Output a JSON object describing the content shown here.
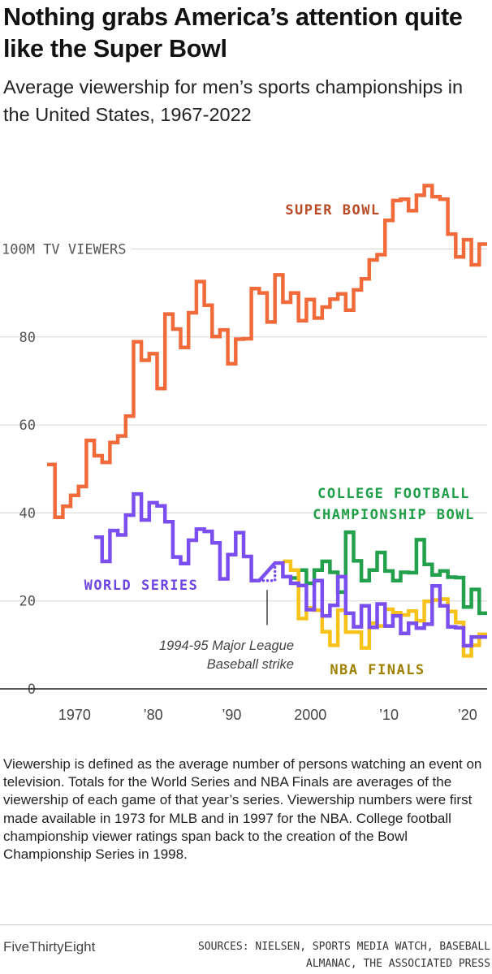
{
  "header": {
    "title": "Nothing grabs America’s attention quite like the Super Bowl",
    "subtitle": "Average viewership for men’s sports championships in the United States, 1967-2022"
  },
  "chart_data": {
    "type": "line",
    "step": true,
    "xlabel": "",
    "ylabel": "100M TV VIEWERS",
    "xlim": [
      1966.5,
      2022.5
    ],
    "ylim": [
      0,
      120
    ],
    "y_ticks": [
      0,
      20,
      40,
      60,
      80,
      100
    ],
    "y_tick_labels": [
      "0",
      "20",
      "40",
      "60",
      "80",
      "100M TV VIEWERS"
    ],
    "x_ticks": [
      1970,
      1980,
      1990,
      2000,
      2010,
      2020
    ],
    "x_tick_labels": [
      "1970",
      "’80",
      "’90",
      "2000",
      "’10",
      "’20"
    ],
    "series": [
      {
        "name": "SUPER BOWL",
        "color": "#f16a3a",
        "label_color": "#b84a25",
        "years": [
          1967,
          1968,
          1969,
          1970,
          1971,
          1972,
          1973,
          1974,
          1975,
          1976,
          1977,
          1978,
          1979,
          1980,
          1981,
          1982,
          1983,
          1984,
          1985,
          1986,
          1987,
          1988,
          1989,
          1990,
          1991,
          1992,
          1993,
          1994,
          1995,
          1996,
          1997,
          1998,
          1999,
          2000,
          2001,
          2002,
          2003,
          2004,
          2005,
          2006,
          2007,
          2008,
          2009,
          2010,
          2011,
          2012,
          2013,
          2014,
          2015,
          2016,
          2017,
          2018,
          2019,
          2020,
          2021,
          2022
        ],
        "values": [
          51,
          39,
          41.5,
          44,
          46,
          56.5,
          53,
          51.5,
          56,
          57.5,
          62,
          78.9,
          74.7,
          76.2,
          68.3,
          85.2,
          81.8,
          77.6,
          85.5,
          92.6,
          87.2,
          80.1,
          81.6,
          73.9,
          79.5,
          79.6,
          90.99,
          90,
          83.4,
          94.1,
          87.9,
          90,
          83.7,
          88.5,
          84.3,
          86.8,
          88.6,
          89.8,
          86.1,
          90.7,
          93.2,
          97.5,
          98.7,
          106.5,
          111,
          111.3,
          108.7,
          112.2,
          114.4,
          111.9,
          111.3,
          103.4,
          98.2,
          102.1,
          96.4,
          101.1
        ]
      },
      {
        "name": "WORLD SERIES",
        "color": "#7b4fef",
        "label_color": "#6e45e0",
        "years": [
          1973,
          1974,
          1975,
          1976,
          1977,
          1978,
          1979,
          1980,
          1981,
          1982,
          1983,
          1984,
          1985,
          1986,
          1987,
          1988,
          1989,
          1990,
          1991,
          1992,
          1993,
          1996,
          1997,
          1998,
          1999,
          2000,
          2001,
          2002,
          2003,
          2004,
          2005,
          2006,
          2007,
          2008,
          2009,
          2010,
          2011,
          2012,
          2013,
          2014,
          2015,
          2016,
          2017,
          2018,
          2019,
          2020,
          2021,
          2022
        ],
        "values": [
          34.5,
          29,
          36,
          35,
          39.5,
          44.3,
          38.4,
          42.3,
          41.6,
          38,
          30,
          28.5,
          33.8,
          36.3,
          35.8,
          33.2,
          25,
          30.5,
          35.5,
          30.1,
          24.6,
          28.6,
          25.5,
          24,
          23.5,
          18,
          24.6,
          16.6,
          19,
          25.5,
          17.2,
          14.1,
          18.9,
          14,
          19.3,
          14.3,
          16.6,
          12.6,
          14.9,
          13.8,
          14.7,
          23.4,
          18.9,
          14.1,
          13.9,
          9.8,
          11.8,
          11.8
        ]
      },
      {
        "name": "WORLD SERIES (1994-95 strike gap)",
        "color": "#7b4fef",
        "dotted": true,
        "years": [
          1993,
          1994,
          1995,
          1996
        ],
        "values": [
          24.6,
          24.6,
          24.6,
          28.6
        ]
      },
      {
        "name": "COLLEGE FOOTBALL CHAMPIONSHIP BOWL",
        "color": "#22a04b",
        "label_color": "#1f9e48",
        "years": [
          1998,
          1999,
          2000,
          2001,
          2002,
          2003,
          2004,
          2005,
          2006,
          2007,
          2008,
          2009,
          2010,
          2011,
          2012,
          2013,
          2014,
          2015,
          2016,
          2017,
          2018,
          2019,
          2020,
          2021,
          2022
        ],
        "values": [
          25.2,
          27,
          24,
          27,
          29,
          26.5,
          22,
          35.6,
          29.1,
          24.6,
          27,
          31,
          26.8,
          24.6,
          26.5,
          26.4,
          33.9,
          28.3,
          25.9,
          26.8,
          25.4,
          25.3,
          18.6,
          22.6,
          17.2
        ]
      },
      {
        "name": "NBA FINALS",
        "color": "#f7c31a",
        "label_color": "#a08000",
        "years": [
          1997,
          1998,
          1999,
          2000,
          2001,
          2002,
          2003,
          2004,
          2005,
          2006,
          2007,
          2008,
          2009,
          2010,
          2011,
          2012,
          2013,
          2014,
          2015,
          2016,
          2017,
          2018,
          2019,
          2020,
          2021,
          2022
        ],
        "values": [
          29,
          27,
          16,
          18.4,
          17.9,
          13,
          9.9,
          17.9,
          12.9,
          12.9,
          9.3,
          14.9,
          14.3,
          18.1,
          17.3,
          16.8,
          17.7,
          15.5,
          19.9,
          20.2,
          20.4,
          17.6,
          15.1,
          7.5,
          9.9,
          12.4
        ]
      }
    ],
    "annotations": [
      {
        "id": "strike",
        "text_lines": [
          "1994-95 Major League",
          "Baseball strike"
        ]
      }
    ]
  },
  "footer": {
    "note": "Viewership is defined as the average number of persons watching an event on television. Totals for the World Series and NBA Finals are averages of the viewership of each game of that year’s series. Viewership numbers were first made available in 1973 for MLB and in 1997 for the NBA. College football championship viewer ratings span back to the creation of the Bowl Championship Series in 1998.",
    "brand": "FiveThirtyEight",
    "sources_line1": "SOURCES: NIELSEN, SPORTS MEDIA WATCH, BASEBALL",
    "sources_line2": "ALMANAC, THE ASSOCIATED PRESS"
  }
}
